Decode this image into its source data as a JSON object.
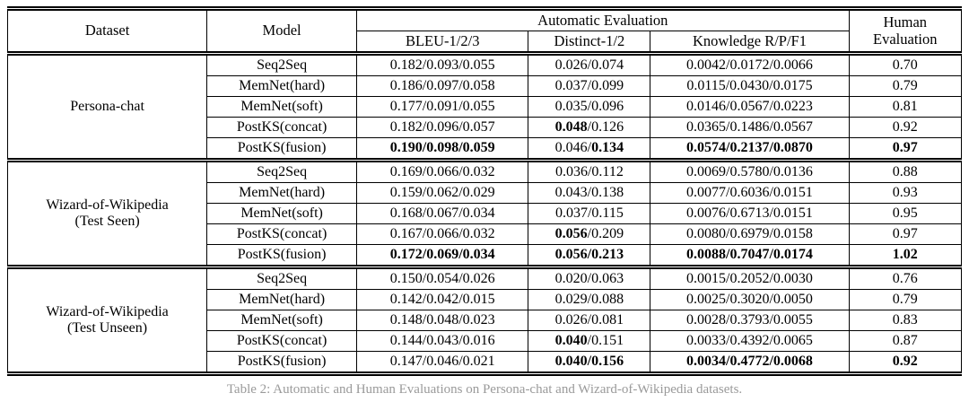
{
  "table": {
    "header": {
      "dataset": "Dataset",
      "model": "Model",
      "automatic": "Automatic Evaluation",
      "human_line1": "Human",
      "human_line2": "Evaluation",
      "sub_bleu": "BLEU-1/2/3",
      "sub_distinct": "Distinct-1/2",
      "sub_knowledge": "Knowledge R/P/F1"
    },
    "groups": [
      {
        "dataset": [
          "Persona-chat"
        ],
        "rows": [
          {
            "model": "Seq2Seq",
            "bleu": "0.182/0.093/0.055",
            "distinct": "0.026/0.074",
            "knowledge": "0.0042/0.0172/0.0066",
            "human": "0.70"
          },
          {
            "model": "MemNet(hard)",
            "bleu": "0.186/0.097/0.058",
            "distinct": "0.037/0.099",
            "knowledge": "0.0115/0.0430/0.0175",
            "human": "0.79"
          },
          {
            "model": "MemNet(soft)",
            "bleu": "0.177/0.091/0.055",
            "distinct": "0.035/0.096",
            "knowledge": "0.0146/0.0567/0.0223",
            "human": "0.81"
          },
          {
            "model": "PostKS(concat)",
            "bleu": "0.182/0.096/0.057",
            "distinct": "**0.048**/0.126",
            "knowledge": "0.0365/0.1486/0.0567",
            "human": "0.92"
          },
          {
            "model": "PostKS(fusion)",
            "bleu": "**0.190/0.098/0.059**",
            "distinct": "0.046/**0.134**",
            "knowledge": "**0.0574/0.2137/0.0870**",
            "human": "**0.97**"
          }
        ]
      },
      {
        "dataset": [
          "Wizard-of-Wikipedia",
          "(Test Seen)"
        ],
        "rows": [
          {
            "model": "Seq2Seq",
            "bleu": "0.169/0.066/0.032",
            "distinct": "0.036/0.112",
            "knowledge": "0.0069/0.5780/0.0136",
            "human": "0.88"
          },
          {
            "model": "MemNet(hard)",
            "bleu": "0.159/0.062/0.029",
            "distinct": "0.043/0.138",
            "knowledge": "0.0077/0.6036/0.0151",
            "human": "0.93"
          },
          {
            "model": "MemNet(soft)",
            "bleu": "0.168/0.067/0.034",
            "distinct": "0.037/0.115",
            "knowledge": "0.0076/0.6713/0.0151",
            "human": "0.95"
          },
          {
            "model": "PostKS(concat)",
            "bleu": "0.167/0.066/0.032",
            "distinct": "**0.056**/0.209",
            "knowledge": "0.0080/0.6979/0.0158",
            "human": "0.97"
          },
          {
            "model": "PostKS(fusion)",
            "bleu": "**0.172/0.069/0.034**",
            "distinct": "**0.056/0.213**",
            "knowledge": "**0.0088/0.7047/0.0174**",
            "human": "**1.02**"
          }
        ]
      },
      {
        "dataset": [
          "Wizard-of-Wikipedia",
          "(Test Unseen)"
        ],
        "rows": [
          {
            "model": "Seq2Seq",
            "bleu": "0.150/0.054/0.026",
            "distinct": "0.020/0.063",
            "knowledge": "0.0015/0.2052/0.0030",
            "human": "0.76"
          },
          {
            "model": "MemNet(hard)",
            "bleu": "0.142/0.042/0.015",
            "distinct": "0.029/0.088",
            "knowledge": "0.0025/0.3020/0.0050",
            "human": "0.79"
          },
          {
            "model": "MemNet(soft)",
            "bleu": "0.148/0.048/0.023",
            "distinct": "0.026/0.081",
            "knowledge": "0.0028/0.3793/0.0055",
            "human": "0.83"
          },
          {
            "model": "PostKS(concat)",
            "bleu": "0.144/0.043/0.016",
            "distinct": "**0.040**/0.151",
            "knowledge": "0.0033/0.4392/0.0065",
            "human": "0.87"
          },
          {
            "model": "PostKS(fusion)",
            "bleu": "0.147/0.046/0.021",
            "distinct": "**0.040/0.156**",
            "knowledge": "**0.0034/0.4772/0.0068**",
            "human": "**0.92**"
          }
        ]
      }
    ]
  },
  "caption": {
    "text": "Table 2: Automatic and Human Evaluations on Persona-chat and Wizard-of-Wikipedia datasets."
  }
}
